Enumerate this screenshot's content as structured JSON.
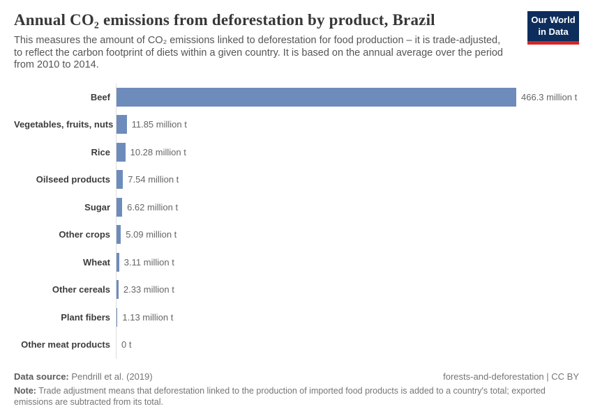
{
  "header": {
    "title": "Annual CO₂ emissions from deforestation by product, Brazil",
    "subtitle_lines": [
      "This measures the amount of CO₂ emissions linked to deforestation for food production – it is trade-adjusted,",
      "to reflect the carbon footprint of diets within a given country. It is based on the annual average over the period",
      "from 2010 to 2014."
    ],
    "logo": {
      "line1": "Our World",
      "line2": "in Data"
    }
  },
  "chart_data": {
    "type": "bar",
    "orientation": "horizontal",
    "title": "Annual CO₂ emissions from deforestation by product, Brazil",
    "unit": "million t",
    "xlim": [
      0,
      466.3
    ],
    "grid": false,
    "legend": "none",
    "categories": [
      "Beef",
      "Vegetables, fruits, nuts",
      "Rice",
      "Oilseed products",
      "Sugar",
      "Other crops",
      "Wheat",
      "Other cereals",
      "Plant fibers",
      "Other meat products"
    ],
    "values": [
      466.3,
      11.85,
      10.28,
      7.54,
      6.62,
      5.09,
      3.11,
      2.33,
      1.13,
      0
    ],
    "value_labels": [
      "466.3 million t",
      "11.85 million t",
      "10.28 million t",
      "7.54 million t",
      "6.62 million t",
      "5.09 million t",
      "3.11 million t",
      "2.33 million t",
      "1.13 million t",
      "0 t"
    ]
  },
  "footer": {
    "datasource_label": "Data source:",
    "datasource_value": " Pendrill et al. (2019)",
    "license": "forests-and-deforestation | CC BY",
    "note_label": "Note:",
    "note_text": " Trade adjustment means that deforestation linked to the production of imported food products is added to a country's total; exported emissions are subtracted from its total."
  },
  "colors": {
    "bar": "#6e8cbb",
    "logo_background": "#0d2e5c",
    "logo_stripe": "#d2262a",
    "axis_line": "#dddddd"
  }
}
